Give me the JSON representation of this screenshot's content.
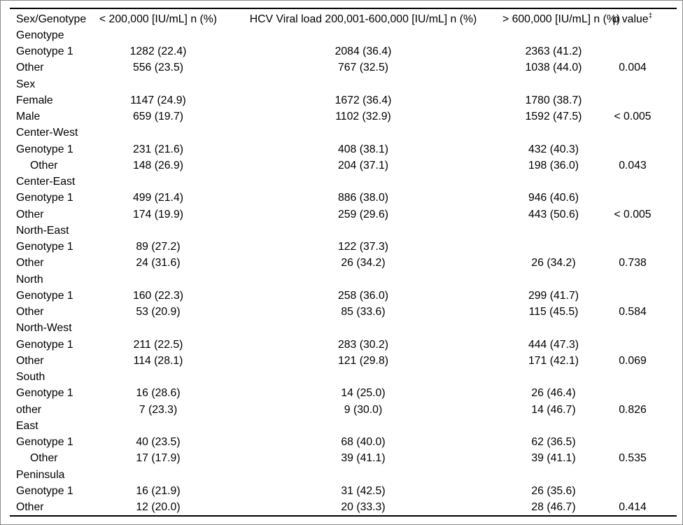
{
  "colors": {
    "background": "#ffffff",
    "text": "#000000",
    "rule": "#000000",
    "frame_border": "#8a8a8a"
  },
  "table": {
    "columns": [
      {
        "text": "Sex/Genotype"
      },
      {
        "text": "< 200,000 [IU/mL] n (%)"
      },
      {
        "text": "HCV Viral load 200,001-600,000 [IU/mL] n (%)"
      },
      {
        "text": "> 600,000 [IU/mL] n (%)"
      },
      {
        "text": "p value",
        "sup": "‡"
      }
    ],
    "rows": [
      {
        "label": "Genotype",
        "type": "section"
      },
      {
        "label": "Genotype 1",
        "values": [
          "1282 (22.4)",
          "2084 (36.4)",
          "2363 (41.2)",
          ""
        ]
      },
      {
        "label": "Other",
        "values": [
          "556 (23.5)",
          "767 (32.5)",
          "1038 (44.0)",
          "0.004"
        ]
      },
      {
        "label": "Sex",
        "type": "section"
      },
      {
        "label": "Female",
        "values": [
          "1147 (24.9)",
          "1672 (36.4)",
          "1780 (38.7)",
          ""
        ]
      },
      {
        "label": "Male",
        "values": [
          "659 (19.7)",
          "1102 (32.9)",
          "1592 (47.5)",
          "< 0.005"
        ]
      },
      {
        "label": "Center-West",
        "type": "section"
      },
      {
        "label": "Genotype 1",
        "values": [
          "231 (21.6)",
          "408 (38.1)",
          "432 (40.3)",
          ""
        ]
      },
      {
        "label": "Other",
        "indent": true,
        "values": [
          "148 (26.9)",
          "204 (37.1)",
          "198 (36.0)",
          "0.043"
        ]
      },
      {
        "label": "Center-East",
        "type": "section"
      },
      {
        "label": "Genotype 1",
        "values": [
          "499 (21.4)",
          "886 (38.0)",
          "946 (40.6)",
          ""
        ]
      },
      {
        "label": "Other",
        "values": [
          "174 (19.9)",
          "259 (29.6)",
          "443 (50.6)",
          "< 0.005"
        ]
      },
      {
        "label": "North-East",
        "type": "section"
      },
      {
        "label": "Genotype 1",
        "values": [
          "89 (27.2)",
          "122 (37.3)",
          "",
          ""
        ]
      },
      {
        "label": "Other",
        "values": [
          "24 (31.6)",
          "26 (34.2)",
          "26 (34.2)",
          "0.738"
        ]
      },
      {
        "label": "North",
        "type": "section"
      },
      {
        "label": "Genotype 1",
        "values": [
          "160 (22.3)",
          "258 (36.0)",
          "299 (41.7)",
          ""
        ]
      },
      {
        "label": "Other",
        "values": [
          "53 (20.9)",
          "85 (33.6)",
          "115 (45.5)",
          "0.584"
        ]
      },
      {
        "label": "North-West",
        "type": "section"
      },
      {
        "label": "Genotype 1",
        "values": [
          "211 (22.5)",
          "283 (30.2)",
          "444 (47.3)",
          ""
        ]
      },
      {
        "label": "Other",
        "values": [
          "114 (28.1)",
          "121 (29.8)",
          "171 (42.1)",
          "0.069"
        ]
      },
      {
        "label": "South",
        "type": "section"
      },
      {
        "label": "Genotype 1",
        "values": [
          "16 (28.6)",
          "14 (25.0)",
          "26 (46.4)",
          ""
        ]
      },
      {
        "label": "other",
        "values": [
          "7 (23.3)",
          "9 (30.0)",
          "14 (46.7)",
          "0.826"
        ]
      },
      {
        "label": "East",
        "type": "section"
      },
      {
        "label": "Genotype 1",
        "values": [
          "40 (23.5)",
          "68 (40.0)",
          "62 (36.5)",
          ""
        ]
      },
      {
        "label": "Other",
        "indent": true,
        "values": [
          "17 (17.9)",
          "39 (41.1)",
          "39 (41.1)",
          "0.535"
        ]
      },
      {
        "label": "Peninsula",
        "type": "section"
      },
      {
        "label": "Genotype 1",
        "values": [
          "16 (21.9)",
          "31 (42.5)",
          "26 (35.6)",
          ""
        ]
      },
      {
        "label": "Other",
        "values": [
          "12 (20.0)",
          "20 (33.3)",
          "28 (46.7)",
          "0.414"
        ]
      }
    ]
  }
}
